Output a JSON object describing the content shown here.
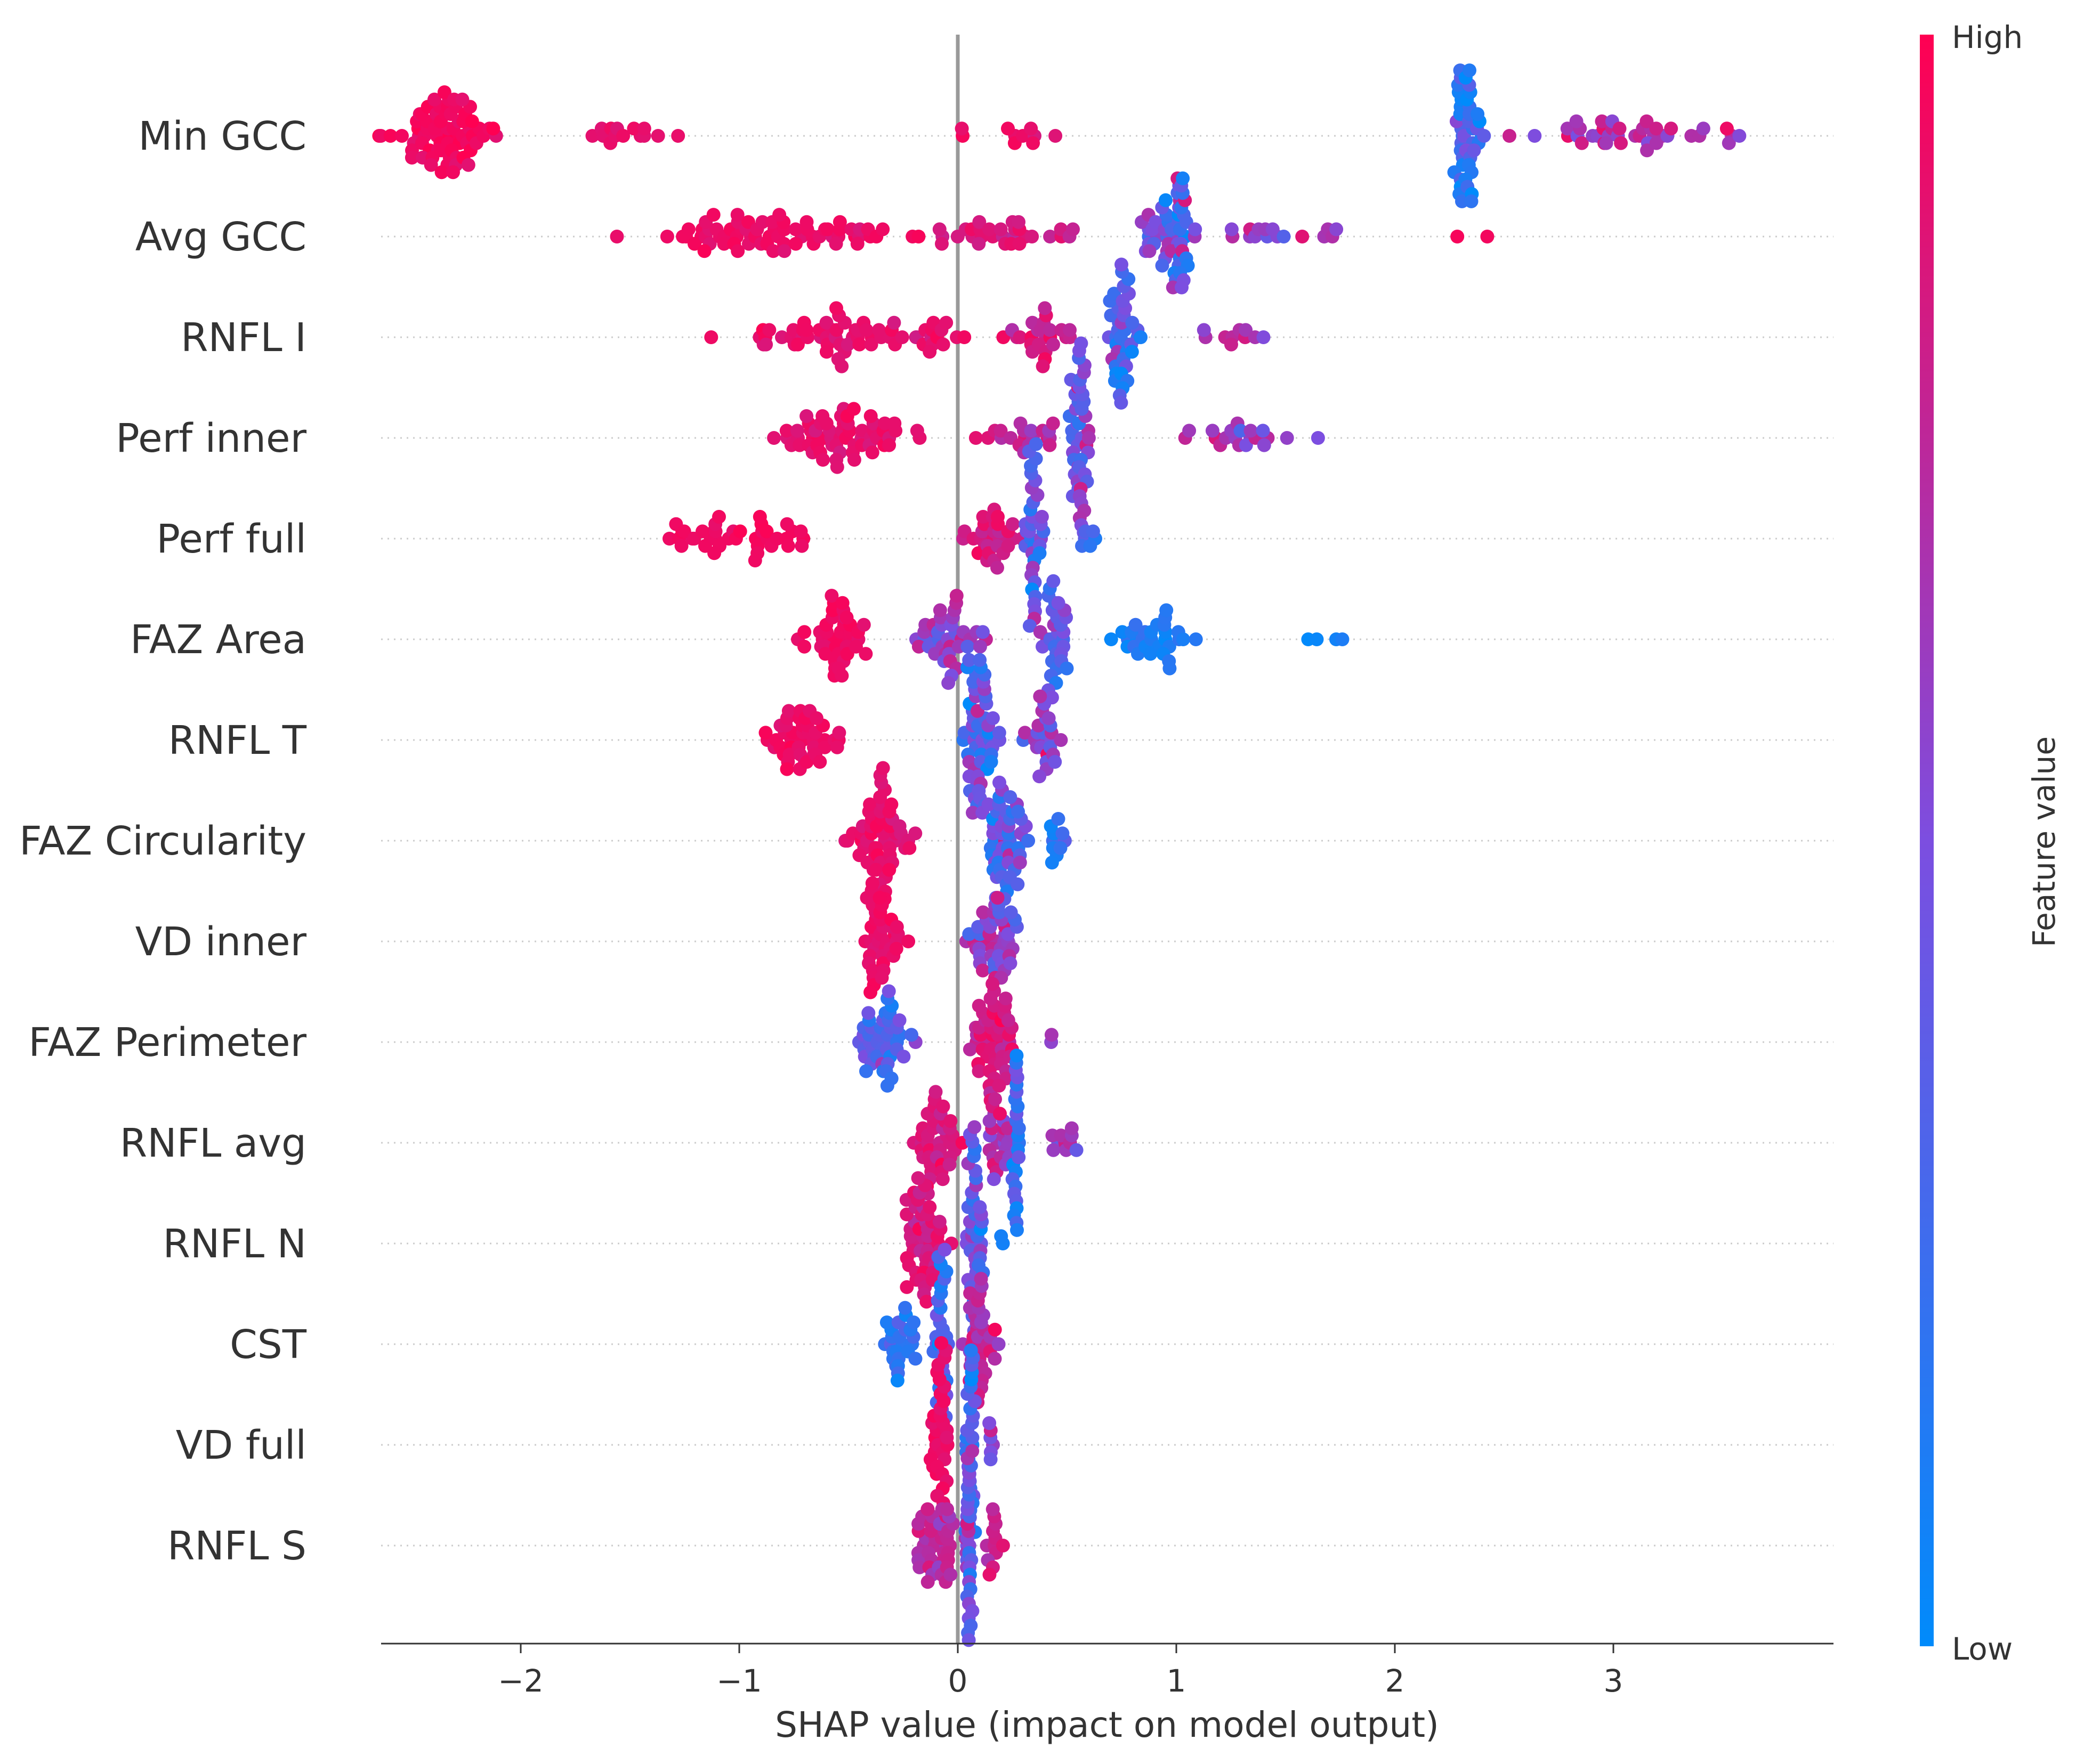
{
  "chart_data": {
    "type": "scatter",
    "subtype": "shap-beeswarm-summary",
    "xlabel": "SHAP value (impact on model output)",
    "xlim": [
      -2.65,
      4.0
    ],
    "x_ticks": [
      {
        "value": -2,
        "label": "−2"
      },
      {
        "value": -1,
        "label": "−1"
      },
      {
        "value": 0,
        "label": "0"
      },
      {
        "value": 1,
        "label": "1"
      },
      {
        "value": 2,
        "label": "2"
      },
      {
        "value": 3,
        "label": "3"
      }
    ],
    "zero_line": true,
    "row_gridlines": "dotted",
    "colorbar": {
      "label": "Feature value",
      "high_label": "High",
      "low_label": "Low",
      "high_color": "#ff0052",
      "low_color": "#008bfb"
    },
    "features": [
      {
        "name": "Min GCC",
        "clusters": [
          {
            "x": -2.35,
            "spread": 0.45,
            "n": 70,
            "color": 0.95,
            "color_var": 0.05
          },
          {
            "x": -1.55,
            "spread": 0.35,
            "n": 14,
            "color": 0.92,
            "color_var": 0.05
          },
          {
            "x": 0.3,
            "spread": 0.5,
            "n": 10,
            "color": 0.9,
            "color_var": 0.06
          },
          {
            "x": 2.33,
            "spread": 0.12,
            "n": 45,
            "color": 0.2,
            "color_var": 0.25
          },
          {
            "x": 3.05,
            "spread": 0.8,
            "n": 40,
            "color": 0.72,
            "color_var": 0.2
          }
        ]
      },
      {
        "name": "Avg GCC",
        "clusters": [
          {
            "x": -0.85,
            "spread": 0.95,
            "n": 70,
            "color": 0.93,
            "color_var": 0.05
          },
          {
            "x": 0.25,
            "spread": 0.55,
            "n": 30,
            "color": 0.85,
            "color_var": 0.1
          },
          {
            "x": 0.98,
            "spread": 0.2,
            "n": 55,
            "color": 0.4,
            "color_var": 0.35
          },
          {
            "x": 1.5,
            "spread": 0.5,
            "n": 16,
            "color": 0.6,
            "color_var": 0.3
          },
          {
            "x": 2.3,
            "spread": 0.3,
            "n": 2,
            "color": 0.95,
            "color_var": 0.02
          }
        ]
      },
      {
        "name": "RNFL I",
        "clusters": [
          {
            "x": -0.5,
            "spread": 0.9,
            "n": 65,
            "color": 0.9,
            "color_var": 0.06
          },
          {
            "x": 0.35,
            "spread": 0.35,
            "n": 25,
            "color": 0.8,
            "color_var": 0.12
          },
          {
            "x": 0.75,
            "spread": 0.12,
            "n": 40,
            "color": 0.3,
            "color_var": 0.3
          },
          {
            "x": 1.25,
            "spread": 0.3,
            "n": 10,
            "color": 0.7,
            "color_var": 0.2
          }
        ]
      },
      {
        "name": "Perf inner",
        "clusters": [
          {
            "x": -0.5,
            "spread": 0.6,
            "n": 60,
            "color": 0.9,
            "color_var": 0.06
          },
          {
            "x": 0.3,
            "spread": 0.3,
            "n": 20,
            "color": 0.75,
            "color_var": 0.15
          },
          {
            "x": 0.56,
            "spread": 0.07,
            "n": 45,
            "color": 0.45,
            "color_var": 0.3
          },
          {
            "x": 1.3,
            "spread": 0.5,
            "n": 20,
            "color": 0.65,
            "color_var": 0.25
          }
        ]
      },
      {
        "name": "Perf full",
        "clusters": [
          {
            "x": -1.0,
            "spread": 0.5,
            "n": 40,
            "color": 0.95,
            "color_var": 0.03
          },
          {
            "x": 0.15,
            "spread": 0.2,
            "n": 30,
            "color": 0.85,
            "color_var": 0.1
          },
          {
            "x": 0.35,
            "spread": 0.07,
            "n": 35,
            "color": 0.45,
            "color_var": 0.3
          },
          {
            "x": 0.6,
            "spread": 0.1,
            "n": 6,
            "color": 0.3,
            "color_var": 0.2
          }
        ]
      },
      {
        "name": "FAZ Area",
        "clusters": [
          {
            "x": -0.55,
            "spread": 0.25,
            "n": 40,
            "color": 0.93,
            "color_var": 0.05
          },
          {
            "x": -0.05,
            "spread": 0.25,
            "n": 40,
            "color": 0.6,
            "color_var": 0.25
          },
          {
            "x": 0.45,
            "spread": 0.1,
            "n": 30,
            "color": 0.4,
            "color_var": 0.25
          },
          {
            "x": 0.9,
            "spread": 0.35,
            "n": 30,
            "color": 0.12,
            "color_var": 0.1
          },
          {
            "x": 1.7,
            "spread": 0.2,
            "n": 4,
            "color": 0.05,
            "color_var": 0.05
          }
        ]
      },
      {
        "name": "RNFL T",
        "clusters": [
          {
            "x": -0.7,
            "spread": 0.3,
            "n": 45,
            "color": 0.93,
            "color_var": 0.05
          },
          {
            "x": 0.1,
            "spread": 0.13,
            "n": 55,
            "color": 0.35,
            "color_var": 0.3
          },
          {
            "x": 0.4,
            "spread": 0.15,
            "n": 25,
            "color": 0.6,
            "color_var": 0.25
          }
        ]
      },
      {
        "name": "FAZ Circularity",
        "clusters": [
          {
            "x": -0.35,
            "spread": 0.25,
            "n": 55,
            "color": 0.9,
            "color_var": 0.06
          },
          {
            "x": 0.22,
            "spread": 0.14,
            "n": 50,
            "color": 0.45,
            "color_var": 0.3
          },
          {
            "x": 0.45,
            "spread": 0.08,
            "n": 10,
            "color": 0.25,
            "color_var": 0.2
          }
        ]
      },
      {
        "name": "VD inner",
        "clusters": [
          {
            "x": -0.35,
            "spread": 0.17,
            "n": 40,
            "color": 0.93,
            "color_var": 0.05
          },
          {
            "x": 0.18,
            "spread": 0.2,
            "n": 45,
            "color": 0.55,
            "color_var": 0.3
          }
        ]
      },
      {
        "name": "FAZ Perimeter",
        "clusters": [
          {
            "x": -0.35,
            "spread": 0.25,
            "n": 45,
            "color": 0.3,
            "color_var": 0.25
          },
          {
            "x": 0.15,
            "spread": 0.15,
            "n": 50,
            "color": 0.85,
            "color_var": 0.12
          },
          {
            "x": 0.43,
            "spread": 0.03,
            "n": 2,
            "color": 0.6,
            "color_var": 0.1
          }
        ]
      },
      {
        "name": "RNFL avg",
        "clusters": [
          {
            "x": -0.1,
            "spread": 0.17,
            "n": 40,
            "color": 0.85,
            "color_var": 0.1
          },
          {
            "x": 0.2,
            "spread": 0.12,
            "n": 25,
            "color": 0.6,
            "color_var": 0.25
          },
          {
            "x": 0.27,
            "spread": 0.03,
            "n": 25,
            "color": 0.25,
            "color_var": 0.2
          },
          {
            "x": 0.5,
            "spread": 0.12,
            "n": 10,
            "color": 0.65,
            "color_var": 0.2
          }
        ]
      },
      {
        "name": "RNFL N",
        "clusters": [
          {
            "x": -0.15,
            "spread": 0.17,
            "n": 50,
            "color": 0.85,
            "color_var": 0.1
          },
          {
            "x": 0.08,
            "spread": 0.06,
            "n": 45,
            "color": 0.35,
            "color_var": 0.3
          },
          {
            "x": 0.2,
            "spread": 0.03,
            "n": 2,
            "color": 0.1,
            "color_var": 0.05
          }
        ]
      },
      {
        "name": "CST",
        "clusters": [
          {
            "x": -0.25,
            "spread": 0.12,
            "n": 25,
            "color": 0.2,
            "color_var": 0.15
          },
          {
            "x": -0.08,
            "spread": 0.06,
            "n": 30,
            "color": 0.3,
            "color_var": 0.25
          },
          {
            "x": 0.1,
            "spread": 0.13,
            "n": 40,
            "color": 0.75,
            "color_var": 0.15
          }
        ]
      },
      {
        "name": "VD full",
        "clusters": [
          {
            "x": -0.08,
            "spread": 0.07,
            "n": 40,
            "color": 0.92,
            "color_var": 0.05
          },
          {
            "x": 0.06,
            "spread": 0.04,
            "n": 30,
            "color": 0.35,
            "color_var": 0.3
          },
          {
            "x": 0.15,
            "spread": 0.03,
            "n": 6,
            "color": 0.6,
            "color_var": 0.2
          }
        ]
      },
      {
        "name": "RNFL S",
        "clusters": [
          {
            "x": -0.1,
            "spread": 0.15,
            "n": 40,
            "color": 0.75,
            "color_var": 0.15
          },
          {
            "x": 0.05,
            "spread": 0.03,
            "n": 35,
            "color": 0.4,
            "color_var": 0.3
          },
          {
            "x": 0.17,
            "spread": 0.08,
            "n": 12,
            "color": 0.8,
            "color_var": 0.1
          }
        ]
      }
    ]
  }
}
